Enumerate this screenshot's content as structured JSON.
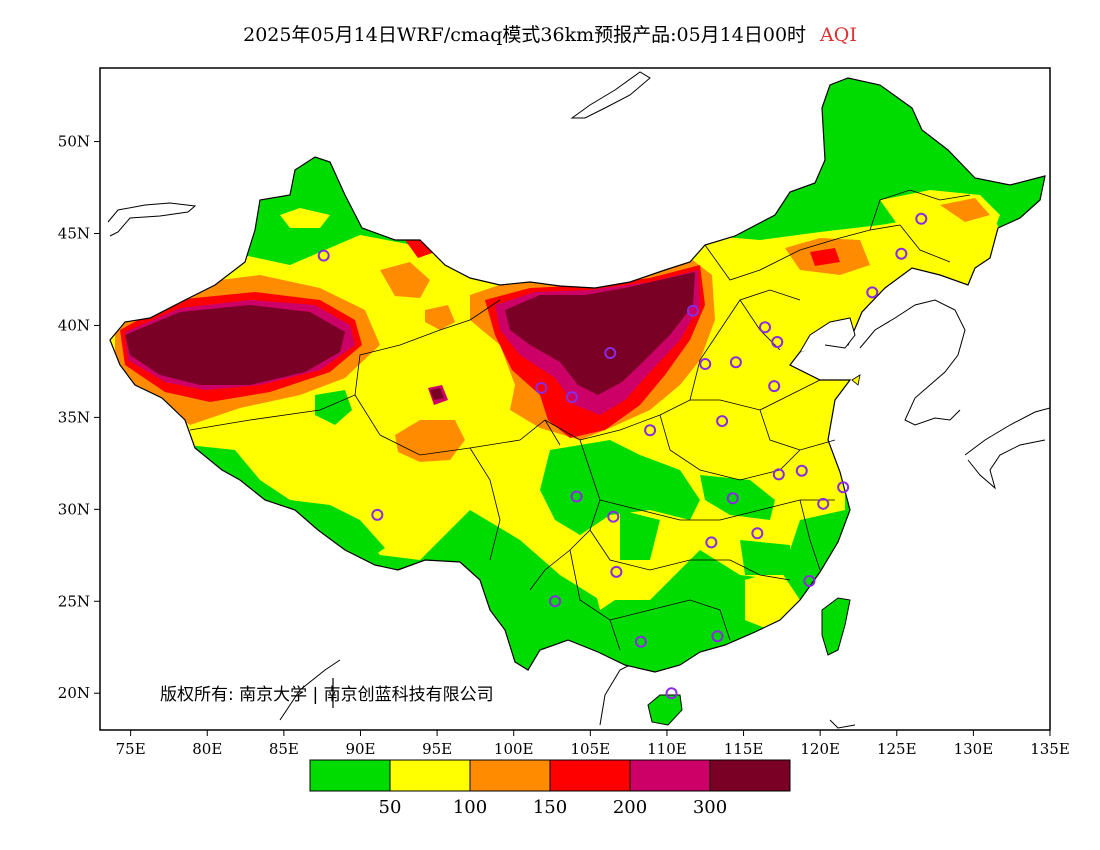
{
  "title": {
    "main": "2025年05月14日WRF/cmaq模式36km预报产品:05月14日00时",
    "variable": "AQI"
  },
  "copyright": "版权所有: 南京大学 | 南京创蓝科技有限公司",
  "axes": {
    "lon_ticks": [
      "75E",
      "80E",
      "85E",
      "90E",
      "95E",
      "100E",
      "105E",
      "110E",
      "115E",
      "120E",
      "125E",
      "130E",
      "135E"
    ],
    "lat_ticks": [
      "50N",
      "45N",
      "40N",
      "35N",
      "30N",
      "25N",
      "20N"
    ],
    "lon_range": [
      73,
      135
    ],
    "lat_range": [
      18,
      54
    ]
  },
  "legend": {
    "colors": [
      "#00dc00",
      "#ffff00",
      "#ff8c00",
      "#ff0000",
      "#cc0066",
      "#7a0026"
    ],
    "labels": [
      "50",
      "100",
      "150",
      "200",
      "300"
    ]
  },
  "station_marker_color": "#8a2be2"
}
